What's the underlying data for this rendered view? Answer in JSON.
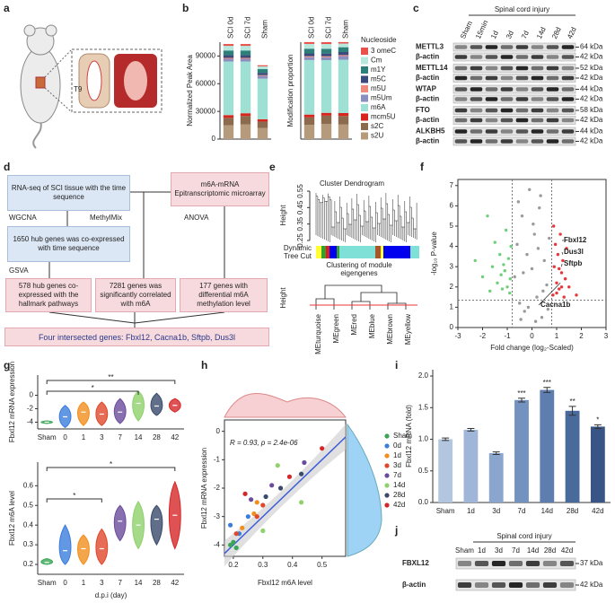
{
  "panel_labels": [
    "a",
    "b",
    "c",
    "d",
    "e",
    "f",
    "g",
    "h",
    "i",
    "j"
  ],
  "panel_a": {
    "level_label": "T9"
  },
  "chart_data": [
    {
      "type": "bar",
      "stacked": true,
      "categories": [
        "SCI 0d",
        "SCI 7d",
        "Sham"
      ],
      "y_label": "Normalized Peak Area",
      "ylim": [
        0,
        105000
      ],
      "yticks": [
        0,
        30000,
        60000,
        90000
      ],
      "legend_title": "Nucleoside",
      "series": [
        {
          "name": "3 omeC",
          "color": "#e9524a",
          "values": [
            2000,
            2000,
            1200
          ]
        },
        {
          "name": "Cm",
          "color": "#b7e8dd",
          "values": [
            5000,
            5000,
            3000
          ]
        },
        {
          "name": "m1Y",
          "color": "#2d7f7a",
          "values": [
            5000,
            5000,
            4000
          ]
        },
        {
          "name": "m5C",
          "color": "#3a4a7a",
          "values": [
            3000,
            3000,
            2500
          ]
        },
        {
          "name": "m5U",
          "color": "#f08b7b",
          "values": [
            1000,
            1000,
            800
          ]
        },
        {
          "name": "m5Um",
          "color": "#8b8fc0",
          "values": [
            3000,
            3000,
            3000
          ]
        },
        {
          "name": "m6A",
          "color": "#9fe0d4",
          "values": [
            58000,
            56000,
            44000
          ]
        },
        {
          "name": "mcm5U",
          "color": "#d7261e",
          "values": [
            3000,
            3000,
            2500
          ]
        },
        {
          "name": "s2C",
          "color": "#8b6a4e",
          "values": [
            8000,
            9000,
            7000
          ]
        },
        {
          "name": "s2U",
          "color": "#b59b7c",
          "values": [
            15000,
            16000,
            12000
          ]
        }
      ]
    },
    {
      "type": "bar",
      "stacked": true,
      "categories": [
        "SCI 0d",
        "SCI 7d",
        "Sham"
      ],
      "y_label": "Modification proportion",
      "ylim": [
        0,
        100
      ],
      "series": [
        {
          "values": [
            1.9,
            1.9,
            1.5
          ]
        },
        {
          "values": [
            4.9,
            4.9,
            3.8
          ]
        },
        {
          "values": [
            4.9,
            4.9,
            5.0
          ]
        },
        {
          "values": [
            2.9,
            2.9,
            3.1
          ]
        },
        {
          "values": [
            1.0,
            1.0,
            1.0
          ]
        },
        {
          "values": [
            2.9,
            2.9,
            3.8
          ]
        },
        {
          "values": [
            56.3,
            54.4,
            55.0
          ]
        },
        {
          "values": [
            2.9,
            2.9,
            3.1
          ]
        },
        {
          "values": [
            7.8,
            8.7,
            8.8
          ]
        },
        {
          "values": [
            14.6,
            15.5,
            15.0
          ]
        }
      ]
    },
    {
      "type": "scatter",
      "frame": true,
      "x_label": "Fold change (log₂-Scaled)",
      "y_label": "-log₁₀ P-value",
      "xlim": [
        -3,
        3
      ],
      "xticks": [
        -3,
        -2,
        -1,
        0,
        1,
        2,
        3
      ],
      "ylim": [
        0,
        7.3
      ],
      "yticks": [
        0,
        1,
        2,
        3,
        4,
        5,
        6,
        7
      ],
      "thresholds": {
        "x": [
          -0.8,
          0.8
        ],
        "y": 1.35
      },
      "series": [
        {
          "color": "#6fd07a",
          "x": [
            -2.3,
            -2.0,
            -1.8,
            -1.6,
            -1.5,
            -1.4,
            -1.3,
            -1.2,
            -1.1,
            -1.05,
            -1.0,
            -0.95,
            -0.9,
            -0.88,
            -0.85,
            -1.7,
            -1.25,
            -1.15
          ],
          "y": [
            3.3,
            2.5,
            5.5,
            3.0,
            4.2,
            2.2,
            3.6,
            1.9,
            2.8,
            4.8,
            2.0,
            3.4,
            1.7,
            2.4,
            4.0,
            1.8,
            2.6,
            3.1
          ]
        },
        {
          "color": "#9a9a9a",
          "x": [
            -0.7,
            -0.6,
            -0.5,
            -0.4,
            -0.3,
            -0.2,
            -0.1,
            0,
            0.1,
            0.2,
            0.3,
            0.4,
            0.5,
            0.6,
            0.7,
            -0.55,
            -0.35,
            -0.15,
            0.05,
            0.25,
            0.45,
            0.65,
            -0.45,
            0.15,
            0.35
          ],
          "y": [
            2.5,
            4.1,
            1.2,
            5.5,
            0.8,
            3.6,
            6.8,
            2.9,
            4.6,
            1.5,
            5.9,
            0.5,
            3.3,
            2.1,
            4.4,
            6.2,
            2.7,
            1.0,
            5.1,
            3.9,
            1.8,
            0.9,
            0.4,
            0.3,
            6.5
          ]
        },
        {
          "color": "#e8373a",
          "x": [
            0.85,
            0.9,
            0.95,
            1.0,
            1.05,
            1.1,
            1.15,
            1.2,
            1.25,
            1.3,
            1.35,
            1.4,
            1.5,
            0.88,
            1.0,
            1.1,
            1.2,
            1.8
          ],
          "y": [
            1.6,
            3.0,
            4.1,
            2.2,
            3.6,
            1.9,
            4.6,
            2.7,
            3.3,
            1.5,
            2.4,
            3.9,
            2.0,
            5.0,
            1.7,
            2.9,
            2.0,
            1.6
          ]
        }
      ],
      "annotations": [
        {
          "text": "Fbxl12",
          "x": 1.3,
          "y": 4.3
        },
        {
          "text": "Dus3l",
          "x": 1.25,
          "y": 3.6
        },
        {
          "text": "Sftpb",
          "x": 1.2,
          "y": 3.0
        },
        {
          "text": "Cacna1b",
          "x": 1.15,
          "y": 2.2
        }
      ]
    },
    {
      "type": "violin",
      "categories": [
        "Sham",
        "0",
        "1",
        "3",
        "7",
        "14",
        "28",
        "42"
      ],
      "y_label": "Fbxl12 mRNA expression",
      "ylim": [
        -5,
        3
      ],
      "yticks": [
        -4,
        -2,
        0
      ],
      "values": [
        -4,
        -3.2,
        -2.5,
        -2.8,
        -2.5,
        -1.2,
        -1.6,
        -1.5
      ],
      "lows": [
        -4.2,
        -4.8,
        -4.5,
        -4.5,
        -4.2,
        -3.8,
        -3,
        -2.5
      ],
      "highs": [
        -3.8,
        -1.5,
        -1,
        -1,
        -0.5,
        0.6,
        0.3,
        -0.5
      ],
      "colors": [
        "#3aa655",
        "#3b7ddd",
        "#f28e1c",
        "#e0472b",
        "#6a4c9c",
        "#8fd16a",
        "#3a4a6b",
        "#d62728"
      ],
      "significance": [
        "**",
        "*"
      ]
    },
    {
      "type": "violin",
      "categories": [
        "Sham",
        "0",
        "1",
        "3",
        "7",
        "14",
        "28",
        "42"
      ],
      "y_label": "Fbxl12 m6A level",
      "x_label": "d.p.i (day)",
      "ylim": [
        0.15,
        0.72
      ],
      "yticks": [
        0.2,
        0.3,
        0.4,
        0.5,
        0.6
      ],
      "values": [
        0.21,
        0.27,
        0.28,
        0.28,
        0.42,
        0.4,
        0.43,
        0.45
      ],
      "lows": [
        0.2,
        0.2,
        0.2,
        0.2,
        0.32,
        0.28,
        0.3,
        0.28
      ],
      "highs": [
        0.23,
        0.4,
        0.35,
        0.38,
        0.5,
        0.52,
        0.5,
        0.62
      ],
      "colors": [
        "#3aa655",
        "#3b7ddd",
        "#f28e1c",
        "#e0472b",
        "#6a4c9c",
        "#8fd16a",
        "#3a4a6b",
        "#d62728"
      ],
      "significance": [
        "*",
        "*"
      ]
    },
    {
      "type": "scatter",
      "frame": true,
      "x_label": "Fbxl12 m6A level",
      "y_label": "Fbxl12 mRNA expression",
      "xlim": [
        0.17,
        0.58
      ],
      "xticks": [
        0.2,
        0.3,
        0.4,
        0.5
      ],
      "ylim": [
        -4.4,
        0.4
      ],
      "yticks": [
        -4,
        -3,
        -2,
        -1,
        0
      ],
      "annotation": "R = 0.93, p = 2.4e-06",
      "fit": {
        "slope": 10,
        "intercept": -6
      },
      "series": [
        {
          "name": "Sham",
          "color": "#3aa655",
          "x": [
            0.19,
            0.2,
            0.21
          ],
          "y": [
            -4.0,
            -3.9,
            -4.1
          ]
        },
        {
          "name": "0d",
          "color": "#3b7ddd",
          "x": [
            0.19,
            0.22,
            0.25
          ],
          "y": [
            -3.3,
            -3.6,
            -3.0
          ]
        },
        {
          "name": "1d",
          "color": "#f28e1c",
          "x": [
            0.23,
            0.27,
            0.28
          ],
          "y": [
            -3.4,
            -2.9,
            -2.5
          ]
        },
        {
          "name": "3d",
          "color": "#e0472b",
          "x": [
            0.21,
            0.28,
            0.3
          ],
          "y": [
            -3.6,
            -3.0,
            -2.6
          ]
        },
        {
          "name": "7d",
          "color": "#6a4c9c",
          "x": [
            0.26,
            0.33,
            0.44
          ],
          "y": [
            -2.4,
            -1.9,
            -1.1
          ]
        },
        {
          "name": "14d",
          "color": "#8fd16a",
          "x": [
            0.3,
            0.35,
            0.43
          ],
          "y": [
            -3.5,
            -1.2,
            -2.5
          ]
        },
        {
          "name": "28d",
          "color": "#3a4a6b",
          "x": [
            0.31,
            0.36,
            0.43
          ],
          "y": [
            -2.3,
            -2.0,
            -1.5
          ]
        },
        {
          "name": "42d",
          "color": "#d62728",
          "x": [
            0.24,
            0.39,
            0.5
          ],
          "y": [
            -2.2,
            -1.6,
            -0.6
          ]
        }
      ]
    },
    {
      "type": "bar",
      "categories": [
        "Sham",
        "1d",
        "3d",
        "7d",
        "14d",
        "28d",
        "42d"
      ],
      "y_label": "Fbxl12 mRNA (fold)",
      "values": [
        1.0,
        1.15,
        0.78,
        1.62,
        1.78,
        1.45,
        1.2
      ],
      "errors": [
        0.02,
        0.02,
        0.02,
        0.03,
        0.04,
        0.07,
        0.03
      ],
      "colors": [
        "#b3c6e0",
        "#9fb6d8",
        "#8aa6cf",
        "#7492c0",
        "#5f7eb0",
        "#4b6a9c",
        "#395585"
      ],
      "annotations": [
        null,
        null,
        null,
        "***",
        "***",
        "**",
        "*"
      ],
      "ylim": [
        0,
        2.1
      ],
      "yticks": [
        {
          "value": 0,
          "label": "0.0"
        },
        0.5,
        {
          "value": 1,
          "label": "1.0"
        },
        1.5,
        {
          "value": 2,
          "label": "2.0"
        }
      ]
    }
  ],
  "blot_c": {
    "title": "Spinal cord injury",
    "lanes": [
      "Sham",
      "15min",
      "1d",
      "3d",
      "7d",
      "14d",
      "28d",
      "42d"
    ],
    "rows": [
      {
        "name": "METTL3",
        "kda": "64 kDa"
      },
      {
        "name": "β-actin",
        "kda": "42 kDa"
      },
      {
        "name": "METTL14",
        "kda": "52 kDa"
      },
      {
        "name": "β-actin",
        "kda": "42 kDa"
      },
      {
        "name": "WTAP",
        "kda": "44 kDa"
      },
      {
        "name": "β-actin",
        "kda": "42 kDa"
      },
      {
        "name": "FTO",
        "kda": "58 kDa"
      },
      {
        "name": "β-actin",
        "kda": "42 kDa"
      },
      {
        "name": "ALKBH5",
        "kda": "44 kDa"
      },
      {
        "name": "β-actin",
        "kda": "42 kDa"
      }
    ]
  },
  "flow_d": {
    "sources": [
      "RNA-seq of SCI tissue with the time sequence",
      "m6A-mRNA Epitranscriptomic microarray"
    ],
    "methods": [
      "WGCNA",
      "MethylMix",
      "ANOVA",
      "GSVA"
    ],
    "results": [
      "1650 hub genes was co-expressed with time sequence",
      "578 hub genes co-expressed with the hallmark pathways",
      "7281 genes was significantly correlated with m6A",
      "177 genes with differential m6A methylation level"
    ],
    "conclusion": "Four intersected genes: Fbxl12, Cacna1b, Sftpb, Dus3l"
  },
  "dendrogram_e": {
    "title": "Cluster Dendrogram",
    "height_label": "Height",
    "yticks": [
      0.25,
      0.35,
      0.45,
      0.55
    ],
    "tree_cut_label": [
      "Dynamic",
      "Tree Cut"
    ],
    "module_title": [
      "Clustering of module",
      "eigengenes"
    ],
    "module_height_label": "Height",
    "modules": [
      "MEturquoise",
      "MEgreen",
      "MEred",
      "MEblue",
      "MEbrown",
      "MEyellow"
    ]
  },
  "blot_j": {
    "title": "Spinal cord injury",
    "lanes": [
      "Sham",
      "1d",
      "3d",
      "7d",
      "14d",
      "28d",
      "42d"
    ],
    "rows": [
      {
        "name": "FBXL12",
        "kda": "37 kDa"
      },
      {
        "name": "β-actin",
        "kda": "42 kDa"
      }
    ]
  }
}
